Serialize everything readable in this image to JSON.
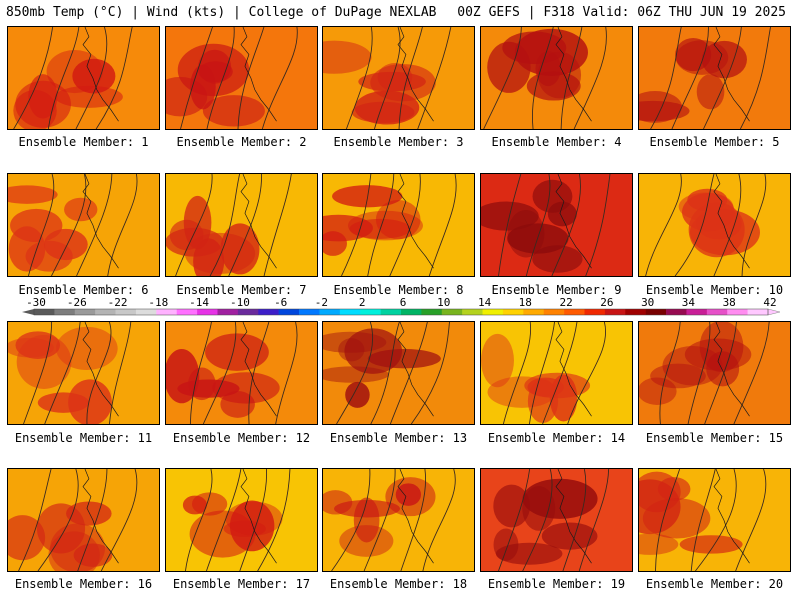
{
  "header": {
    "left": "850mb Temp (°C) | Wind (kts) | College of DuPage NEXLAB",
    "right": "00Z GEFS | F318 Valid: 06Z THU JUN 19 2025"
  },
  "colorbar": {
    "tick_labels": [
      "-30",
      "-26",
      "-22",
      "-18",
      "-14",
      "-10",
      "-6",
      "-2",
      "2",
      "6",
      "10",
      "14",
      "18",
      "22",
      "26",
      "30",
      "34",
      "38",
      "42"
    ],
    "colors": [
      "#5a5a5a",
      "#7d7d7d",
      "#9a9a9a",
      "#b4b4b4",
      "#c8c8c8",
      "#dcdcdc",
      "#ffb2ff",
      "#ff70ff",
      "#e632e6",
      "#a020a0",
      "#6a2a9c",
      "#3c1ec8",
      "#0046dc",
      "#0078ff",
      "#00aaff",
      "#00dcff",
      "#00f0dc",
      "#00d2a0",
      "#00b464",
      "#28a028",
      "#78b41e",
      "#b4d21e",
      "#f0f000",
      "#ffd200",
      "#ffaa00",
      "#ff8200",
      "#ff5a00",
      "#f02800",
      "#c81414",
      "#a00000",
      "#780000",
      "#960a50",
      "#c81e96",
      "#e650c8",
      "#ff8cf0",
      "#ffc8ff"
    ]
  },
  "members": [
    {
      "label": "Ensemble Member: 1",
      "base": "#f68a0a",
      "hot": "#d21a12"
    },
    {
      "label": "Ensemble Member: 2",
      "base": "#f4760c",
      "hot": "#c81414"
    },
    {
      "label": "Ensemble Member: 3",
      "base": "#f69a08",
      "hot": "#d22414"
    },
    {
      "label": "Ensemble Member: 4",
      "base": "#f48a0a",
      "hot": "#b41010"
    },
    {
      "label": "Ensemble Member: 5",
      "base": "#f27a0c",
      "hot": "#b41010"
    },
    {
      "label": "Ensemble Member: 6",
      "base": "#f6a406",
      "hot": "#dc3216"
    },
    {
      "label": "Ensemble Member: 7",
      "base": "#f8b804",
      "hot": "#d22414"
    },
    {
      "label": "Ensemble Member: 8",
      "base": "#f8b804",
      "hot": "#d21a12"
    },
    {
      "label": "Ensemble Member: 9",
      "base": "#dc2a14",
      "hot": "#8c0c0c"
    },
    {
      "label": "Ensemble Member: 10",
      "base": "#f8b406",
      "hot": "#dc3216"
    },
    {
      "label": "Ensemble Member: 11",
      "base": "#f6a406",
      "hot": "#dc3216"
    },
    {
      "label": "Ensemble Member: 12",
      "base": "#f48a0a",
      "hot": "#c81414"
    },
    {
      "label": "Ensemble Member: 13",
      "base": "#f28a0a",
      "hot": "#a01010"
    },
    {
      "label": "Ensemble Member: 14",
      "base": "#f8c404",
      "hot": "#dc3216"
    },
    {
      "label": "Ensemble Member: 15",
      "base": "#f07a0c",
      "hot": "#b41010"
    },
    {
      "label": "Ensemble Member: 16",
      "base": "#f6a406",
      "hot": "#d22414"
    },
    {
      "label": "Ensemble Member: 17",
      "base": "#f8c404",
      "hot": "#d21a12"
    },
    {
      "label": "Ensemble Member: 18",
      "base": "#f8b406",
      "hot": "#c81414"
    },
    {
      "label": "Ensemble Member: 19",
      "base": "#e8441a",
      "hot": "#960c0c"
    },
    {
      "label": "Ensemble Member: 20",
      "base": "#f8b406",
      "hot": "#d22414"
    }
  ]
}
